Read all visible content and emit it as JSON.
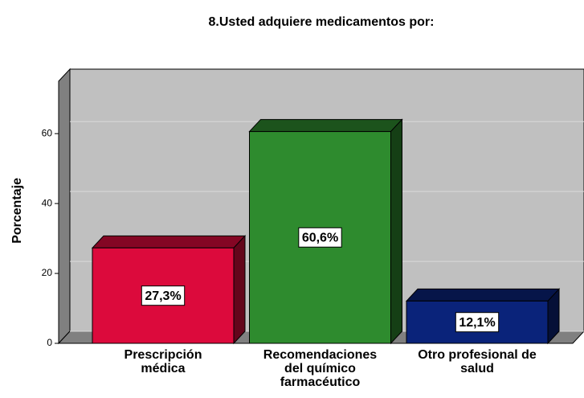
{
  "chart_data": {
    "type": "bar3d",
    "title": "8.Usted adquiere medicamentos por:",
    "y_label": "Porcentaje",
    "categories": [
      "Prescripción\nmédica",
      "Recomendaciones\ndel químico\nfarmacéutico",
      "Otro profesional de\nsalud"
    ],
    "values": [
      27.3,
      60.6,
      12.1
    ],
    "value_labels": [
      "27,3%",
      "60,6%",
      "12,1%"
    ],
    "colors": [
      "#dc0a3c",
      "#2e8b2e",
      "#0a237a"
    ],
    "ylim": [
      0,
      75
    ],
    "yticks": [
      0,
      20,
      40,
      60
    ],
    "grid": true
  }
}
